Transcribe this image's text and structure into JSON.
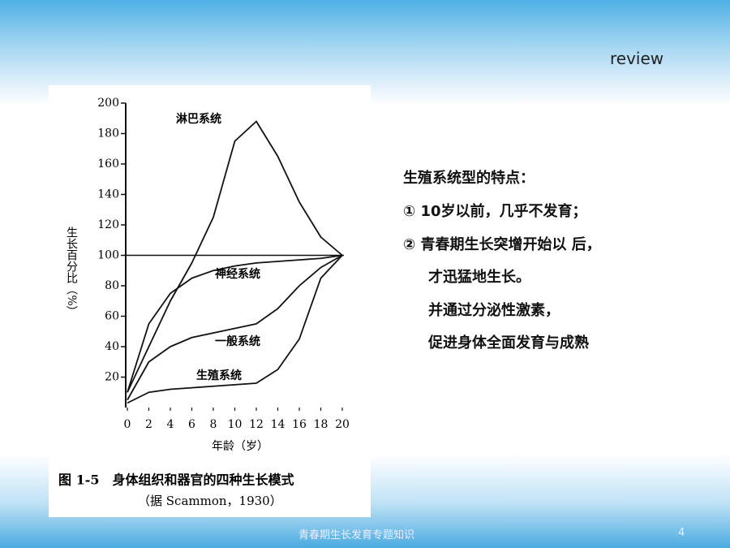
{
  "header": {
    "tag": "review"
  },
  "chart_data": {
    "type": "line",
    "x": [
      0,
      2,
      4,
      6,
      8,
      10,
      12,
      14,
      16,
      18,
      20
    ],
    "series": [
      {
        "name": "淋巴系统",
        "color": "#111111",
        "values": [
          10,
          40,
          70,
          95,
          125,
          175,
          188,
          165,
          135,
          112,
          100
        ]
      },
      {
        "name": "神经系统",
        "color": "#111111",
        "values": [
          10,
          55,
          75,
          85,
          90,
          93,
          95,
          96,
          97,
          98,
          100
        ]
      },
      {
        "name": "一般系统",
        "color": "#111111",
        "values": [
          5,
          30,
          40,
          46,
          49,
          52,
          55,
          65,
          80,
          92,
          100
        ]
      },
      {
        "name": "生殖系统",
        "color": "#111111",
        "values": [
          3,
          10,
          12,
          13,
          14,
          15,
          16,
          25,
          45,
          85,
          100
        ]
      }
    ],
    "xlim": [
      0,
      20
    ],
    "xticks": [
      0,
      2,
      4,
      6,
      8,
      10,
      12,
      14,
      16,
      18,
      20
    ],
    "ylim": [
      0,
      200
    ],
    "yticks": [
      20,
      40,
      60,
      80,
      100,
      120,
      140,
      160,
      180,
      200
    ],
    "reference_line": 100,
    "ylabel": "生长百分比（%）",
    "xlabel": "年龄（岁）",
    "caption": "图 1-5　身体组织和器官的四种生长模式",
    "source": "（据 Scammon，1930）"
  },
  "text": {
    "heading": "生殖系统型的特点：",
    "lines": [
      "① 10岁以前，几乎不发育；",
      "② 青春期生长突增开始以 后，",
      "才迅猛地生长。",
      "并通过分泌性激素，",
      "促进身体全面发育与成熟"
    ]
  },
  "footer": {
    "title": "青春期生长发育专题知识",
    "page": "4"
  }
}
